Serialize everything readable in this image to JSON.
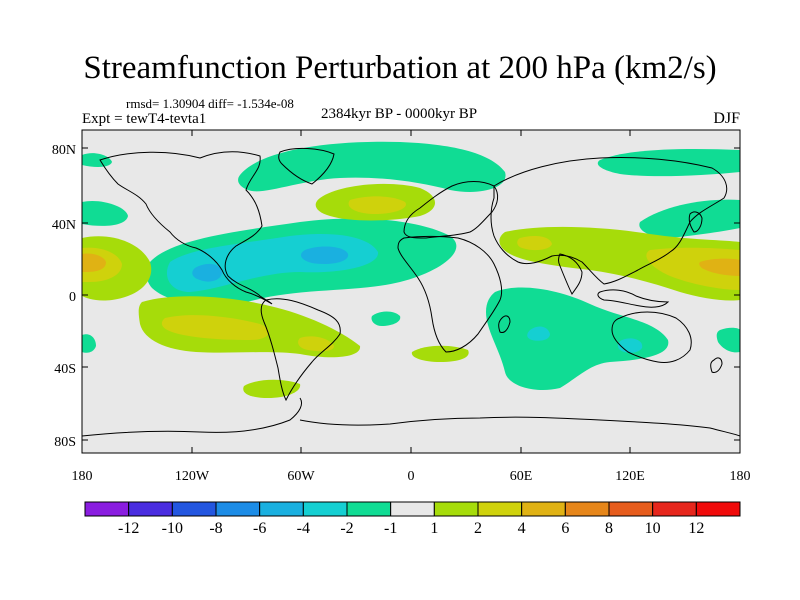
{
  "title": "Streamfunction Perturbation at 200 hPa (km2/s)",
  "stats": "rmsd= 1.30904  diff= -1.534e-08",
  "experiment": "Expt = tewT4-tevta1",
  "period": "2384kyr BP - 0000kyr BP",
  "season": "DJF",
  "map": {
    "lat_ticks": [
      "80N",
      "40N",
      "0",
      "40S",
      "80S"
    ],
    "lon_ticks": [
      "180",
      "120W",
      "60W",
      "0",
      "60E",
      "120E",
      "180"
    ],
    "background_color": "#e8e8e8"
  },
  "colorbar": {
    "labels": [
      "-12",
      "-10",
      "-8",
      "-6",
      "-4",
      "-2",
      "-1",
      "1",
      "2",
      "4",
      "6",
      "8",
      "10",
      "12"
    ],
    "colors": [
      "#8a1de0",
      "#4a2de0",
      "#2356e0",
      "#1c8ce6",
      "#1ab0e0",
      "#15cfd2",
      "#10dc94",
      "#e8e8e8",
      "#a6dc0a",
      "#cfd20c",
      "#e0b214",
      "#e6861a",
      "#e65c1c",
      "#e6261c",
      "#f00a0a"
    ]
  },
  "chart_data": {
    "type": "heatmap",
    "title": "Streamfunction Perturbation at 200 hPa (km2/s)",
    "units": "km2/s",
    "levels": [
      -12,
      -10,
      -8,
      -6,
      -4,
      -2,
      -1,
      1,
      2,
      4,
      6,
      8,
      10,
      12
    ],
    "xlim": [
      -180,
      180
    ],
    "ylim": [
      -90,
      90
    ],
    "xlabel": "",
    "ylabel": ""
  }
}
